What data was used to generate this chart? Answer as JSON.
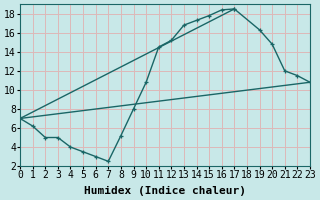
{
  "xlabel": "Humidex (Indice chaleur)",
  "xlim": [
    0,
    23
  ],
  "ylim": [
    2,
    19
  ],
  "xticks": [
    0,
    1,
    2,
    3,
    4,
    5,
    6,
    7,
    8,
    9,
    10,
    11,
    12,
    13,
    14,
    15,
    16,
    17,
    18,
    19,
    20,
    21,
    22,
    23
  ],
  "yticks": [
    2,
    4,
    6,
    8,
    10,
    12,
    14,
    16,
    18
  ],
  "bg_color": "#c8e8e8",
  "grid_color": "#ddb8b8",
  "line_color": "#1a6666",
  "line1_x": [
    0,
    1,
    2,
    3,
    4,
    5,
    6,
    7,
    8,
    9,
    10,
    11,
    12,
    13,
    14,
    15,
    16,
    17
  ],
  "line1_y": [
    7.0,
    6.2,
    5.0,
    5.0,
    4.0,
    3.5,
    3.0,
    2.5,
    5.2,
    8.0,
    10.8,
    14.5,
    15.2,
    16.8,
    17.3,
    17.8,
    18.4,
    18.5
  ],
  "line2_x": [
    0,
    17,
    19,
    20,
    21,
    22,
    23
  ],
  "line2_y": [
    7.0,
    18.5,
    16.3,
    14.8,
    12.0,
    11.5,
    10.8
  ],
  "line3_x": [
    0,
    23
  ],
  "line3_y": [
    7.0,
    10.8
  ],
  "fontsize_tick": 7,
  "fontsize_label": 8
}
